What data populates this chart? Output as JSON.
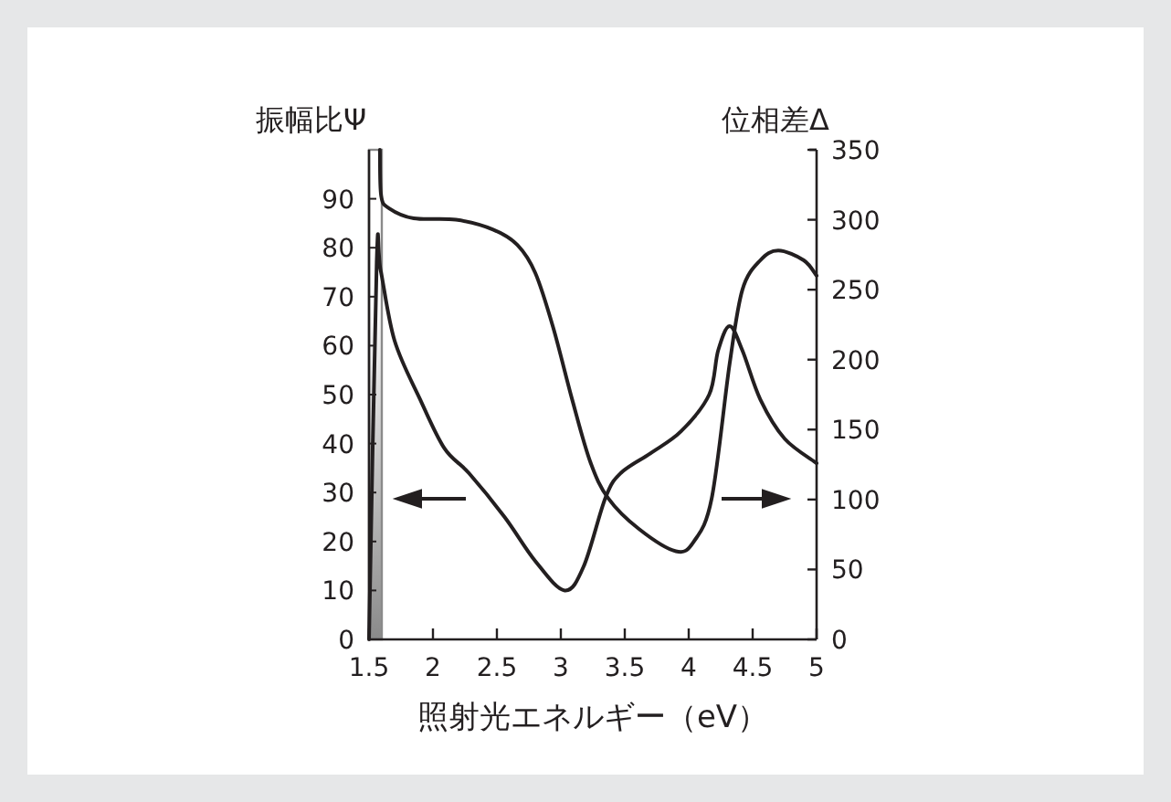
{
  "chart_data": {
    "type": "line",
    "ylabel": "振幅比Ψ",
    "y2label": "位相差Δ",
    "xlabel": "照射光エネルギー（eV）",
    "xlim": [
      1.5,
      5
    ],
    "xticks": [
      1.5,
      2,
      2.5,
      3,
      3.5,
      4,
      4.5,
      5
    ],
    "ylim": [
      0,
      100
    ],
    "yticks": [
      0,
      10,
      20,
      30,
      40,
      50,
      60,
      70,
      80,
      90
    ],
    "y2lim": [
      0,
      350
    ],
    "y2ticks": [
      0,
      50,
      100,
      150,
      200,
      250,
      300,
      350
    ],
    "grid": false,
    "marker": "none",
    "line_style": "solid",
    "bands": [
      {
        "axis": "x",
        "from": 1.5,
        "to": 1.6,
        "color": "#8a8a8a"
      }
    ],
    "series": [
      {
        "color": "#231f20",
        "x": [
          1.5,
          1.56,
          1.59,
          1.7,
          1.9,
          2.09,
          2.28,
          2.56,
          2.8,
          3.03,
          3.18,
          3.35,
          3.47,
          3.7,
          3.94,
          4.16,
          4.23,
          4.32,
          4.42,
          4.56,
          4.75,
          5.0
        ],
        "values": [
          0,
          77,
          75.5,
          61,
          49,
          39,
          34,
          25,
          16,
          10,
          15,
          29,
          34,
          38,
          42.5,
          50,
          59,
          64,
          59,
          49,
          41,
          36
        ]
      },
      {
        "color": "#231f20",
        "axis": "y2",
        "x": [
          1.585,
          1.595,
          1.66,
          1.85,
          2.18,
          2.47,
          2.66,
          2.8,
          2.94,
          3.09,
          3.23,
          3.37,
          3.61,
          3.9,
          4.04,
          4.18,
          4.32,
          4.42,
          4.56,
          4.7,
          4.9,
          5.0
        ],
        "values": [
          350,
          317,
          308,
          301,
          300,
          293,
          282,
          262,
          223,
          171,
          127,
          101,
          79,
          63,
          70,
          101,
          197,
          250,
          271,
          278,
          271,
          260
        ]
      }
    ]
  }
}
